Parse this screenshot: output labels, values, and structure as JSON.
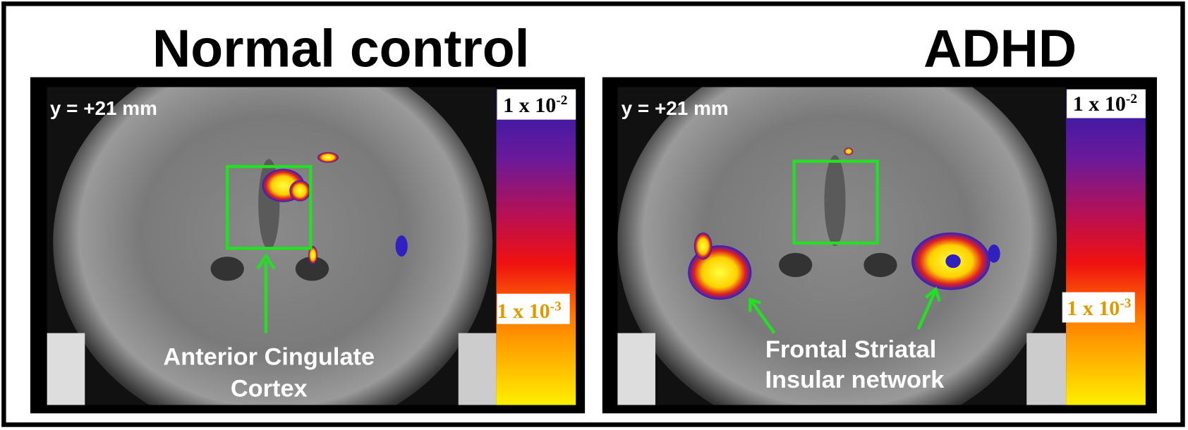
{
  "panels": [
    {
      "title": "Normal control",
      "coordinate": "y = +21 mm",
      "colorbar": {
        "top_label": {
          "base": "1 x 10",
          "exponent": "-2"
        },
        "bottom_label": {
          "base": "1 x 10",
          "exponent": "-3"
        }
      },
      "annotation": [
        "Anterior Cingulate",
        "Cortex"
      ]
    },
    {
      "title": "ADHD",
      "coordinate": "y = +21 mm",
      "colorbar": {
        "top_label": {
          "base": "1 x 10",
          "exponent": "-2"
        },
        "bottom_label": {
          "base": "1 x 10",
          "exponent": "-3"
        }
      },
      "annotation": [
        "Frontal Striatal",
        "Insular network"
      ]
    }
  ]
}
